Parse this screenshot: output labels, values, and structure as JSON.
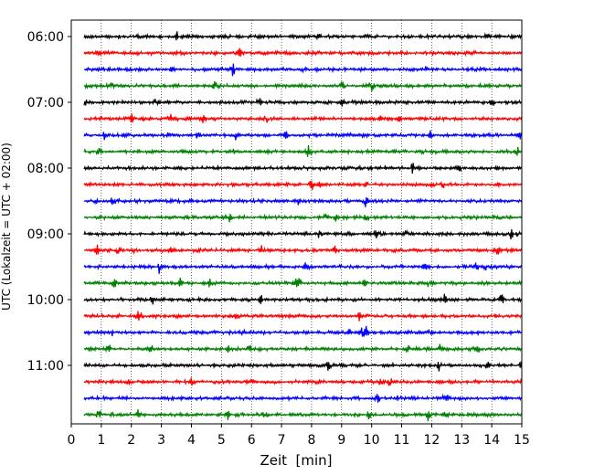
{
  "chart_data": {
    "type": "line",
    "title": "",
    "xlabel": "Zeit  [min]",
    "ylabel": "UTC (Lokalzeit = UTC + 02:00)",
    "xlim": [
      0,
      15
    ],
    "x_ticks": [
      0,
      1,
      2,
      3,
      4,
      5,
      6,
      7,
      8,
      9,
      10,
      11,
      12,
      13,
      14,
      15
    ],
    "ylim_hours": [
      "06:00",
      "11:50"
    ],
    "y_tick_labels": [
      "06:00",
      "07:00",
      "08:00",
      "09:00",
      "10:00",
      "11:00"
    ],
    "grid": "vertical dotted at each minute",
    "legend": "none",
    "trace_interval_min": 15,
    "color_cycle": [
      "#000000",
      "#ff0000",
      "#0000ff",
      "#008000"
    ],
    "traces": [
      {
        "start": "06:00",
        "color": "#000000"
      },
      {
        "start": "06:15",
        "color": "#ff0000"
      },
      {
        "start": "06:30",
        "color": "#0000ff"
      },
      {
        "start": "06:45",
        "color": "#008000"
      },
      {
        "start": "07:00",
        "color": "#000000"
      },
      {
        "start": "07:15",
        "color": "#ff0000"
      },
      {
        "start": "07:30",
        "color": "#0000ff"
      },
      {
        "start": "07:45",
        "color": "#008000"
      },
      {
        "start": "08:00",
        "color": "#000000"
      },
      {
        "start": "08:15",
        "color": "#ff0000"
      },
      {
        "start": "08:30",
        "color": "#0000ff"
      },
      {
        "start": "08:45",
        "color": "#008000"
      },
      {
        "start": "09:00",
        "color": "#000000"
      },
      {
        "start": "09:15",
        "color": "#ff0000"
      },
      {
        "start": "09:30",
        "color": "#0000ff"
      },
      {
        "start": "09:45",
        "color": "#008000"
      },
      {
        "start": "10:00",
        "color": "#000000"
      },
      {
        "start": "10:15",
        "color": "#ff0000"
      },
      {
        "start": "10:30",
        "color": "#0000ff"
      },
      {
        "start": "10:45",
        "color": "#008000"
      },
      {
        "start": "11:00",
        "color": "#000000"
      },
      {
        "start": "11:15",
        "color": "#ff0000"
      },
      {
        "start": "11:30",
        "color": "#0000ff"
      },
      {
        "start": "11:45",
        "color": "#008000"
      }
    ]
  }
}
